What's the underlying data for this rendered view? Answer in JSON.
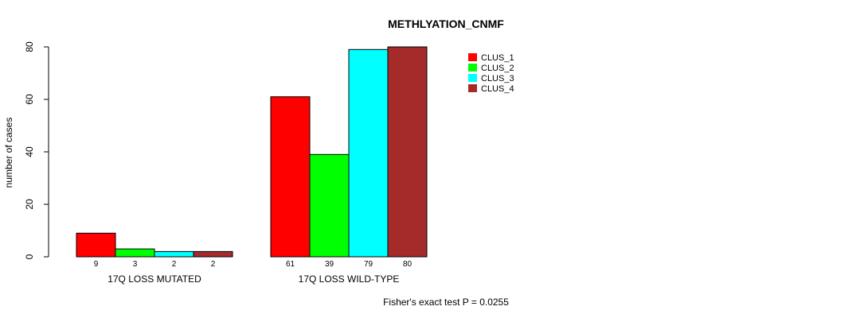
{
  "chart_data": {
    "type": "bar",
    "title": "METHLYATION_CNMF",
    "xlabel": "",
    "ylabel": "number of cases",
    "ylim": [
      0,
      80
    ],
    "yticks": [
      0,
      20,
      40,
      60,
      80
    ],
    "categories": [
      "17Q LOSS MUTATED",
      "17Q LOSS WILD-TYPE"
    ],
    "series": [
      {
        "name": "CLUS_1",
        "color": "#ff0000",
        "values": [
          9,
          61
        ]
      },
      {
        "name": "CLUS_2",
        "color": "#00ff00",
        "values": [
          3,
          39
        ]
      },
      {
        "name": "CLUS_3",
        "color": "#00ffff",
        "values": [
          2,
          79
        ]
      },
      {
        "name": "CLUS_4",
        "color": "#a52a2a",
        "values": [
          2,
          80
        ]
      }
    ],
    "legend_position": "top-right",
    "footnote": "Fisher's exact test P = 0.0255"
  }
}
